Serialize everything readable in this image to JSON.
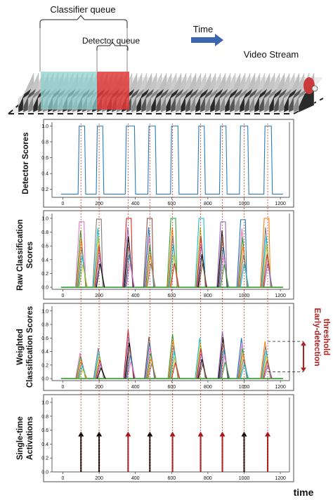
{
  "header": {
    "classifier_queue": "Classifier queue",
    "detector_queue": "Detector queue",
    "time": "Time",
    "video_stream": "Video Stream"
  },
  "panels": [
    {
      "id": "detector",
      "ylabel_lines": [
        "Detector Scores"
      ],
      "yticks": [
        "0.2",
        "0.4",
        "0.6",
        "0.8",
        "1.0"
      ],
      "xticks": [
        "0",
        "200",
        "400",
        "600",
        "800",
        "1000",
        "1200"
      ]
    },
    {
      "id": "raw",
      "ylabel_lines": [
        "Raw Classification",
        "Scores"
      ],
      "yticks": [
        "0.0",
        "0.2",
        "0.4",
        "0.6",
        "0.8",
        "1.0"
      ],
      "xticks": [
        "0",
        "200",
        "400",
        "600",
        "800",
        "1000",
        "1200"
      ]
    },
    {
      "id": "weighted",
      "ylabel_lines": [
        "Weighted",
        "Classification Scores"
      ],
      "yticks": [
        "0.0",
        "0.2",
        "0.4",
        "0.6",
        "0.8",
        "1.0"
      ],
      "xticks": [
        "0",
        "200",
        "400",
        "600",
        "800",
        "1000",
        "1200"
      ]
    },
    {
      "id": "activations",
      "ylabel_lines": [
        "Single-time",
        "Activations"
      ],
      "yticks": [
        "0.0",
        "0.2",
        "0.4",
        "0.6",
        "0.8",
        "1.0"
      ],
      "xticks": [
        "0",
        "200",
        "400",
        "600",
        "800",
        "1000",
        "1200"
      ]
    }
  ],
  "annotation": {
    "early_detection_lines": [
      "Early-detection",
      "threshold"
    ]
  },
  "xaxis_label": "time",
  "colors": {
    "detector_line": "#2b7bba",
    "guide_line": "#c0392b",
    "arrow_black": "#000000",
    "arrow_red": "#a31515",
    "annotation_red": "#b22222",
    "time_arrow": "#3a66b0",
    "classifier_box": "#8fd0cf",
    "detector_box": "#e03b3b"
  },
  "chart_data": [
    {
      "type": "line",
      "title": "",
      "ylabel": "Detector Scores",
      "xlim": [
        -60,
        1250
      ],
      "ylim": [
        0.1,
        1.03
      ],
      "series": [
        {
          "values_desc": "square pulses",
          "pulses": [
            [
              90,
              100
            ],
            [
              190,
              200
            ],
            [
              350,
              375
            ],
            [
              475,
              490
            ],
            [
              600,
              615
            ],
            [
              750,
              760
            ],
            [
              870,
              880
            ],
            [
              980,
              1000
            ],
            [
              1115,
              1130
            ]
          ],
          "low": 0.14,
          "high": 1.0
        }
      ]
    },
    {
      "type": "line",
      "title": "",
      "ylabel": "Raw Classification Scores",
      "xlim": [
        -60,
        1250
      ],
      "ylim": [
        -0.03,
        1.05
      ],
      "events": [
        {
          "x": 95,
          "peak": 0.95
        },
        {
          "x": 190,
          "peak": 0.99
        },
        {
          "x": 355,
          "peak": 1.0
        },
        {
          "x": 470,
          "peak": 1.0
        },
        {
          "x": 600,
          "peak": 1.0
        },
        {
          "x": 755,
          "peak": 1.0
        },
        {
          "x": 875,
          "peak": 0.95
        },
        {
          "x": 985,
          "peak": 0.98
        },
        {
          "x": 1115,
          "peak": 1.0
        }
      ]
    },
    {
      "type": "line",
      "title": "",
      "ylabel": "Weighted Classification Scores",
      "xlim": [
        -60,
        1250
      ],
      "ylim": [
        -0.03,
        1.05
      ],
      "threshold_band": [
        0.1,
        0.55
      ],
      "events": [
        {
          "x": 95,
          "peak": 0.38
        },
        {
          "x": 195,
          "peak": 0.45
        },
        {
          "x": 360,
          "peak": 0.72
        },
        {
          "x": 475,
          "peak": 0.62
        },
        {
          "x": 605,
          "peak": 0.66
        },
        {
          "x": 755,
          "peak": 0.6
        },
        {
          "x": 880,
          "peak": 0.7
        },
        {
          "x": 985,
          "peak": 0.6
        },
        {
          "x": 1115,
          "peak": 0.55
        }
      ]
    },
    {
      "type": "activations",
      "title": "",
      "ylabel": "Single-time Activations",
      "xlabel": "time",
      "xlim": [
        -60,
        1250
      ],
      "ylim": [
        0,
        1.05
      ],
      "activations": [
        {
          "x": 100,
          "value": 0.58,
          "kind": "black"
        },
        {
          "x": 200,
          "value": 0.58,
          "kind": "black"
        },
        {
          "x": 360,
          "value": 0.58,
          "kind": "red"
        },
        {
          "x": 480,
          "value": 0.58,
          "kind": "black"
        },
        {
          "x": 605,
          "value": 0.58,
          "kind": "red"
        },
        {
          "x": 760,
          "value": 0.58,
          "kind": "red"
        },
        {
          "x": 880,
          "value": 0.58,
          "kind": "red"
        },
        {
          "x": 1000,
          "value": 0.58,
          "kind": "black"
        },
        {
          "x": 1130,
          "value": 0.58,
          "kind": "red"
        }
      ]
    }
  ]
}
